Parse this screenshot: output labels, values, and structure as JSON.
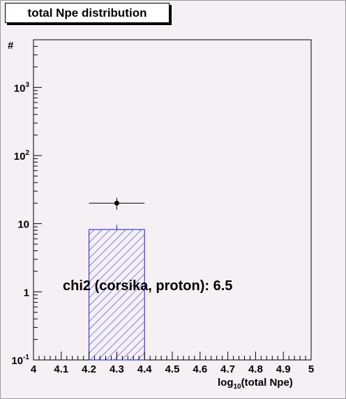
{
  "chart_data": {
    "type": "bar",
    "title": "total Npe distribution",
    "xlabel_base": "log",
    "xlabel_sub": "10",
    "xlabel_rest": "(total Npe)",
    "ylabel": "#",
    "xlim": [
      4,
      5
    ],
    "ylim": [
      0.1,
      5000
    ],
    "yscale": "log",
    "x_ticks": [
      "4",
      "4.1",
      "4.2",
      "4.3",
      "4.4",
      "4.5",
      "4.6",
      "4.7",
      "4.8",
      "4.9",
      "5"
    ],
    "y_ticks": [
      {
        "value": 0.1,
        "base": "10",
        "exp": "-1"
      },
      {
        "value": 1,
        "base": "1",
        "exp": ""
      },
      {
        "value": 10,
        "base": "10",
        "exp": ""
      },
      {
        "value": 100,
        "base": "10",
        "exp": "2"
      },
      {
        "value": 1000,
        "base": "10",
        "exp": "3"
      }
    ],
    "histogram": {
      "name": "corsika, proton",
      "bins": [
        {
          "x_low": 4.2,
          "x_high": 4.4,
          "value": 8.2,
          "err_high": 9.6
        }
      ],
      "fill_color": "#1a1acc",
      "fill_style": "hatched"
    },
    "data_points": [
      {
        "x": 4.3,
        "y": 20.0,
        "x_err": 0.1,
        "y_low": 16.0,
        "y_high": 24.0
      }
    ],
    "annotation": "chi2 (corsika, proton): 6.5"
  }
}
